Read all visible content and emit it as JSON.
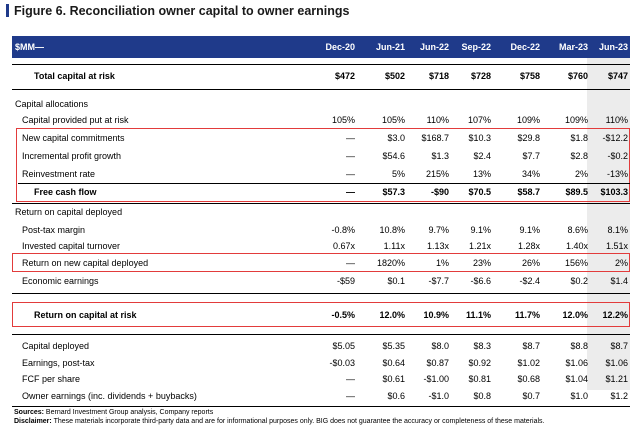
{
  "title": "Figure 6. Reconciliation owner capital to owner earnings",
  "columns": [
    "$MM—",
    "Dec-20",
    "Jun-21",
    "Jun-22",
    "Sep-22",
    "Dec-22",
    "Mar-23",
    "Jun-23"
  ],
  "total_capital": {
    "label": "Total capital at risk",
    "values": [
      "$472",
      "$502",
      "$718",
      "$728",
      "$758",
      "$760",
      "$747"
    ]
  },
  "section_alloc": "Capital allocations",
  "capital_provided": {
    "label": "Capital provided put at risk",
    "values": [
      "105%",
      "105%",
      "110%",
      "107%",
      "109%",
      "109%",
      "110%"
    ]
  },
  "new_commit": {
    "label": "New capital commitments",
    "values": [
      "—",
      "$3.0",
      "$168.7",
      "$10.3",
      "$29.8",
      "$1.8",
      "-$12.2"
    ]
  },
  "incr_profit": {
    "label": "Incremental profit growth",
    "values": [
      "—",
      "$54.6",
      "$1.3",
      "$2.4",
      "$7.7",
      "$2.8",
      "-$0.2"
    ]
  },
  "reinvest": {
    "label": "Reinvestment rate",
    "values": [
      "—",
      "5%",
      "215%",
      "13%",
      "34%",
      "2%",
      "-13%"
    ]
  },
  "fcf": {
    "label": "Free cash flow",
    "values": [
      "—",
      "$57.3",
      "-$90",
      "$70.5",
      "$58.7",
      "$89.5",
      "$103.3"
    ]
  },
  "section_rocd": "Return on capital deployed",
  "post_tax": {
    "label": "Post-tax margin",
    "values": [
      "-0.8%",
      "10.8%",
      "9.7%",
      "9.1%",
      "9.1%",
      "8.6%",
      "8.1%"
    ]
  },
  "turnover": {
    "label": "Invested capital turnover",
    "values": [
      "0.67x",
      "1.11x",
      "1.13x",
      "1.21x",
      "1.28x",
      "1.40x",
      "1.51x"
    ]
  },
  "ronc": {
    "label": "Return on new capital deployed",
    "values": [
      "—",
      "1820%",
      "1%",
      "23%",
      "26%",
      "156%",
      "2%"
    ]
  },
  "econ": {
    "label": "Economic earnings",
    "values": [
      "-$59",
      "$0.1",
      "-$7.7",
      "-$6.6",
      "-$2.4",
      "$0.2",
      "$1.4"
    ]
  },
  "rocar": {
    "label": "Return on capital at risk",
    "values": [
      "-0.5%",
      "12.0%",
      "10.9%",
      "11.1%",
      "11.7%",
      "12.0%",
      "12.2%"
    ]
  },
  "cap_deployed": {
    "label": "Capital deployed",
    "values": [
      "$5.05",
      "$5.35",
      "$8.0",
      "$8.3",
      "$8.7",
      "$8.8",
      "$8.7"
    ]
  },
  "earnings": {
    "label": "Earnings, post-tax",
    "values": [
      "-$0.03",
      "$0.64",
      "$0.87",
      "$0.92",
      "$1.02",
      "$1.06",
      "$1.06"
    ]
  },
  "fcf_share": {
    "label": "FCF per share",
    "values": [
      "—",
      "$0.61",
      "-$1.00",
      "$0.81",
      "$0.68",
      "$1.04",
      "$1.21"
    ]
  },
  "owner_earn": {
    "label": "Owner earnings (inc. dividends + buybacks)",
    "values": [
      "—",
      "$0.6",
      "-$1.0",
      "$0.8",
      "$0.7",
      "$1.0",
      "$1.2"
    ]
  },
  "sources_label": "Sources:",
  "sources_text": "Bernard Investment Group analysis, Company reports",
  "disclaimer_label": "Disclaimer:",
  "disclaimer_text": "These materials incorporate third-party data and are for informational purposes only. BIG does not guarantee the accuracy or completeness of these materials.",
  "colors": {
    "header": "#1f3a8a",
    "highlight": "#e23b3b",
    "shade": "#ececec"
  }
}
